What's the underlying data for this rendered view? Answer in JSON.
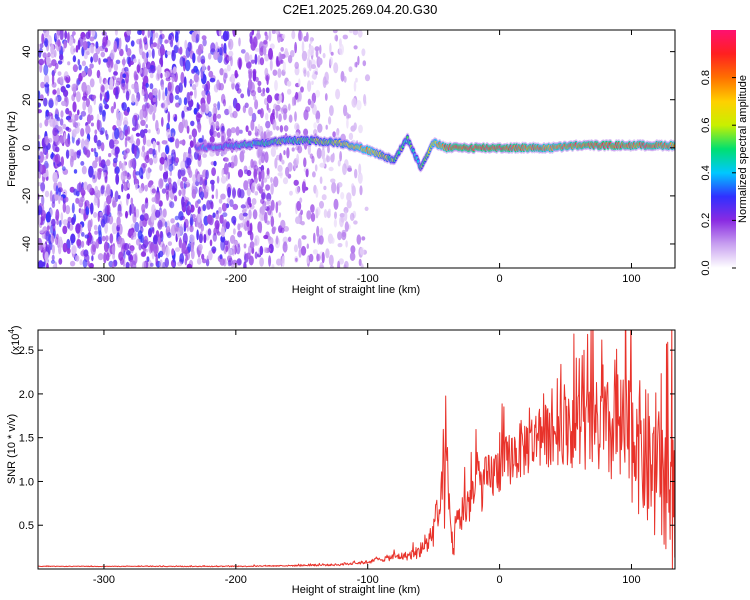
{
  "figure": {
    "title": "C2E1.2025.269.04.20.G30"
  },
  "colors": {
    "snr_line": "#e8322a",
    "axis": "#000000",
    "background": "#ffffff"
  },
  "chart_data": [
    {
      "type": "heatmap",
      "title": "C2E1.2025.269.04.20.G30",
      "xlabel": "Height of straight line (km)",
      "ylabel": "Frequency (Hz)",
      "xlim": [
        -350,
        133
      ],
      "ylim": [
        -50,
        49
      ],
      "xticks": [
        -300,
        -200,
        -100,
        0,
        100
      ],
      "xtick_labels": [
        "-300",
        "-200",
        "-100",
        "0",
        "100"
      ],
      "yticks": [
        -40,
        -20,
        0,
        20,
        40
      ],
      "ytick_labels": [
        "-40",
        "-20",
        "0",
        "20",
        "40"
      ],
      "colorbar": {
        "label": "Normalized spectral amplitude",
        "range": [
          0,
          1
        ],
        "ticks": [
          0.0,
          0.2,
          0.4,
          0.6,
          0.8
        ],
        "tick_labels": [
          "0.0",
          "0.2",
          "0.4",
          "0.6",
          "0.8"
        ],
        "colormap": [
          "#ffffff",
          "#c8a0f0",
          "#8a2be2",
          "#3030ff",
          "#00c8ff",
          "#00e070",
          "#c8f000",
          "#ffd000",
          "#ff7000",
          "#ff2020",
          "#ff1070"
        ]
      },
      "ridge": {
        "height_km": [
          -230,
          -200,
          -180,
          -160,
          -140,
          -120,
          -100,
          -90,
          -80,
          -70,
          -60,
          -50,
          -40,
          -30,
          -20,
          0,
          20,
          40,
          60,
          80,
          100,
          120,
          133
        ],
        "frequency_hz": [
          0,
          1,
          2,
          3,
          3,
          2,
          -1,
          -3,
          -5,
          4,
          -8,
          2,
          0,
          0,
          0,
          0,
          0,
          0,
          1,
          1,
          1,
          1,
          1
        ],
        "amplitude": [
          0.3,
          0.4,
          0.5,
          0.5,
          0.55,
          0.6,
          0.75,
          0.6,
          0.55,
          0.5,
          0.45,
          0.7,
          0.85,
          0.9,
          0.9,
          0.9,
          0.85,
          0.8,
          0.85,
          0.9,
          0.85,
          0.85,
          0.8
        ]
      },
      "noise_extent_km": [
        -350,
        -120
      ],
      "noise_amplitude": 0.2
    },
    {
      "type": "line",
      "xlabel": "Height of straight line (km)",
      "ylabel": "SNR (10 * v/v)",
      "scale_label": "(x10",
      "scale_exponent": "4",
      "scale_close": ")",
      "xlim": [
        -350,
        133
      ],
      "ylim": [
        0,
        2.73
      ],
      "xticks": [
        -300,
        -200,
        -100,
        0,
        100
      ],
      "xtick_labels": [
        "-300",
        "-200",
        "-100",
        "0",
        "100"
      ],
      "yticks": [
        0.5,
        1.0,
        1.5,
        2.0,
        2.5
      ],
      "ytick_labels": [
        "0.5",
        "1.0",
        "1.5",
        "2.0",
        "2.5"
      ],
      "series": [
        {
          "name": "SNR",
          "x": [
            -350,
            -300,
            -250,
            -200,
            -150,
            -120,
            -100,
            -90,
            -80,
            -70,
            -60,
            -55,
            -50,
            -45,
            -40,
            -37,
            -35,
            -30,
            -20,
            -10,
            0,
            10,
            20,
            30,
            40,
            50,
            60,
            70,
            80,
            90,
            100,
            110,
            120,
            130
          ],
          "y": [
            0.03,
            0.03,
            0.03,
            0.03,
            0.04,
            0.05,
            0.08,
            0.11,
            0.14,
            0.15,
            0.2,
            0.28,
            0.45,
            0.7,
            1.0,
            0.45,
            0.25,
            0.6,
            0.85,
            1.0,
            1.15,
            1.3,
            1.4,
            1.5,
            1.55,
            1.6,
            1.6,
            1.6,
            1.55,
            1.55,
            1.5,
            1.3,
            1.0,
            0.8
          ],
          "fluctuation": [
            0.003,
            0.003,
            0.004,
            0.005,
            0.008,
            0.012,
            0.02,
            0.03,
            0.04,
            0.05,
            0.08,
            0.12,
            0.2,
            0.3,
            0.6,
            0.25,
            0.15,
            0.25,
            0.3,
            0.3,
            0.3,
            0.32,
            0.35,
            0.35,
            0.38,
            0.4,
            0.5,
            0.55,
            0.6,
            0.7,
            0.75,
            0.8,
            0.85,
            0.9
          ]
        }
      ]
    }
  ]
}
